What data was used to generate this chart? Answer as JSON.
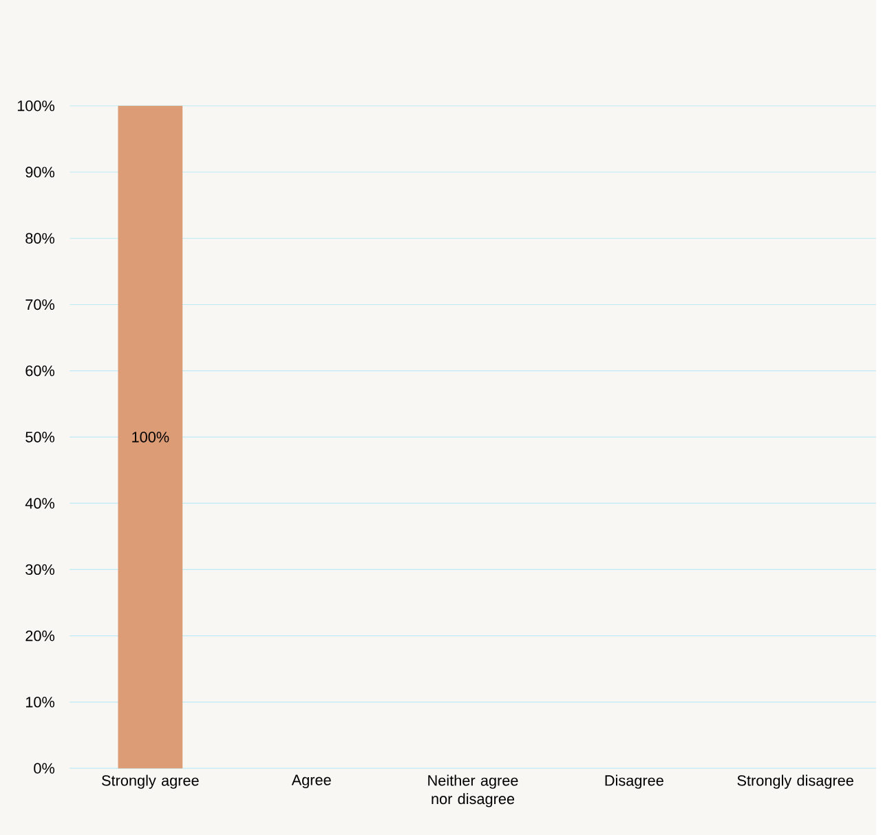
{
  "chart_data": {
    "type": "bar",
    "categories": [
      "Strongly agree",
      "Agree",
      "Neither agree nor disagree",
      "Disagree",
      "Strongly disagree"
    ],
    "values": [
      100,
      0,
      0,
      0,
      0
    ],
    "color": "#dc9c76",
    "value_labels": [
      "100%",
      null,
      null,
      null,
      null
    ],
    "ylim": [
      0,
      100
    ],
    "yticks": [
      {
        "value": 0,
        "label": "0%"
      },
      {
        "value": 10,
        "label": "10%"
      },
      {
        "value": 20,
        "label": "20%"
      },
      {
        "value": 30,
        "label": "30%"
      },
      {
        "value": 40,
        "label": "40%"
      },
      {
        "value": 50,
        "label": "50%"
      },
      {
        "value": 60,
        "label": "60%"
      },
      {
        "value": 70,
        "label": "70%"
      },
      {
        "value": 80,
        "label": "80%"
      },
      {
        "value": 90,
        "label": "90%"
      },
      {
        "value": 100,
        "label": "100%"
      }
    ],
    "grid": "y"
  }
}
